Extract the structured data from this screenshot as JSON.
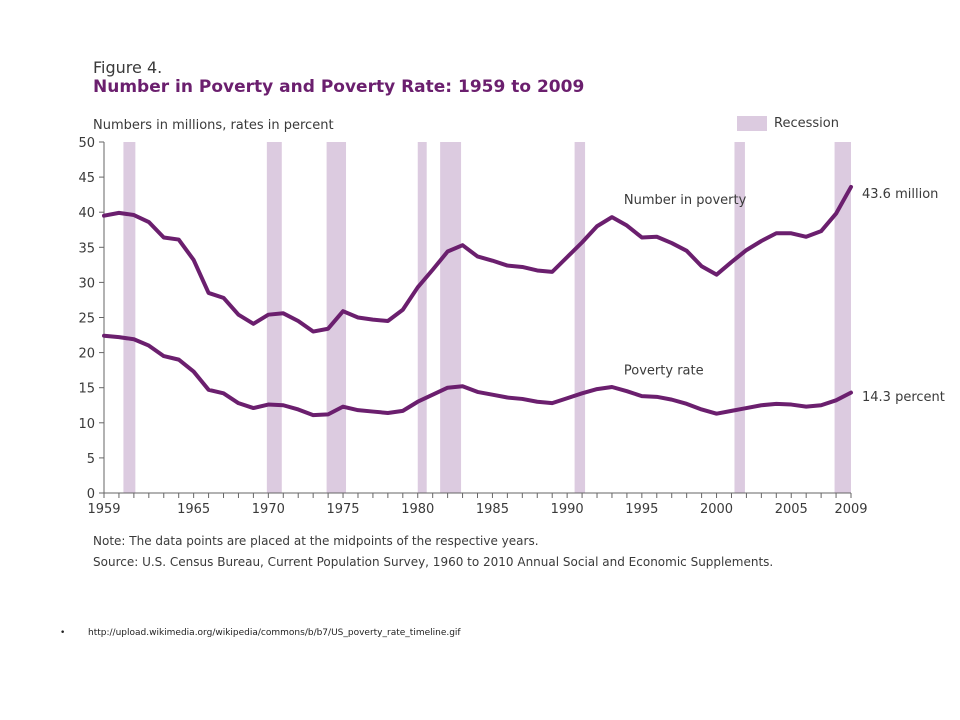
{
  "figure_label": "Figure 4.",
  "chart_data": {
    "type": "line",
    "title": "Number in Poverty and Poverty Rate: 1959 to 2009",
    "ylabel": "Numbers in millions, rates in percent",
    "xlabel": "",
    "ylim": [
      0,
      50
    ],
    "xlim": [
      1959,
      2009
    ],
    "y_ticks": [
      0,
      5,
      10,
      15,
      20,
      25,
      30,
      35,
      40,
      45,
      50
    ],
    "x_ticks": [
      1959,
      1965,
      1970,
      1975,
      1980,
      1985,
      1990,
      1995,
      2000,
      2005,
      2009
    ],
    "legend": "Recession",
    "legend_position": "top-right",
    "grid": false,
    "recessions": [
      [
        1960.3,
        1961.1
      ],
      [
        1969.9,
        1970.9
      ],
      [
        1973.9,
        1975.2
      ],
      [
        1980.0,
        1980.6
      ],
      [
        1981.5,
        1982.9
      ],
      [
        1990.5,
        1991.2
      ],
      [
        2001.2,
        2001.9
      ],
      [
        2007.9,
        2009.5
      ]
    ],
    "x": [
      1959,
      1960,
      1961,
      1962,
      1963,
      1964,
      1965,
      1966,
      1967,
      1968,
      1969,
      1970,
      1971,
      1972,
      1973,
      1974,
      1975,
      1976,
      1977,
      1978,
      1979,
      1980,
      1981,
      1982,
      1983,
      1984,
      1985,
      1986,
      1987,
      1988,
      1989,
      1990,
      1991,
      1992,
      1993,
      1994,
      1995,
      1996,
      1997,
      1998,
      1999,
      2000,
      2001,
      2002,
      2003,
      2004,
      2005,
      2006,
      2007,
      2008,
      2009
    ],
    "series": [
      {
        "name": "Number in poverty",
        "end_label": "43.6 million",
        "values": [
          39.5,
          39.9,
          39.6,
          38.6,
          36.4,
          36.1,
          33.2,
          28.5,
          27.8,
          25.4,
          24.1,
          25.4,
          25.6,
          24.5,
          23.0,
          23.4,
          25.9,
          25.0,
          24.7,
          24.5,
          26.1,
          29.3,
          31.8,
          34.4,
          35.3,
          33.7,
          33.1,
          32.4,
          32.2,
          31.7,
          31.5,
          33.6,
          35.7,
          38.0,
          39.3,
          38.1,
          36.4,
          36.5,
          35.6,
          34.5,
          32.3,
          31.1,
          32.9,
          34.6,
          35.9,
          37.0,
          37.0,
          36.5,
          37.3,
          39.8,
          43.6
        ]
      },
      {
        "name": "Poverty rate",
        "end_label": "14.3 percent",
        "values": [
          22.4,
          22.2,
          21.9,
          21.0,
          19.5,
          19.0,
          17.3,
          14.7,
          14.2,
          12.8,
          12.1,
          12.6,
          12.5,
          11.9,
          11.1,
          11.2,
          12.3,
          11.8,
          11.6,
          11.4,
          11.7,
          13.0,
          14.0,
          15.0,
          15.2,
          14.4,
          14.0,
          13.6,
          13.4,
          13.0,
          12.8,
          13.5,
          14.2,
          14.8,
          15.1,
          14.5,
          13.8,
          13.7,
          13.3,
          12.7,
          11.9,
          11.3,
          11.7,
          12.1,
          12.5,
          12.7,
          12.6,
          12.3,
          12.5,
          13.2,
          14.3
        ]
      }
    ],
    "colors": {
      "line": "#6b1f6e",
      "recession": "#dccbe0",
      "axis": "#666666"
    }
  },
  "note": "Note:  The data points are placed at the midpoints of the respective years.",
  "source": "Source:  U.S. Census Bureau, Current Population Survey, 1960 to 2010 Annual Social and Economic Supplements.",
  "url": "http://upload.wikimedia.org/wikipedia/commons/b/b7/US_poverty_rate_timeline.gif",
  "bullet": "•"
}
